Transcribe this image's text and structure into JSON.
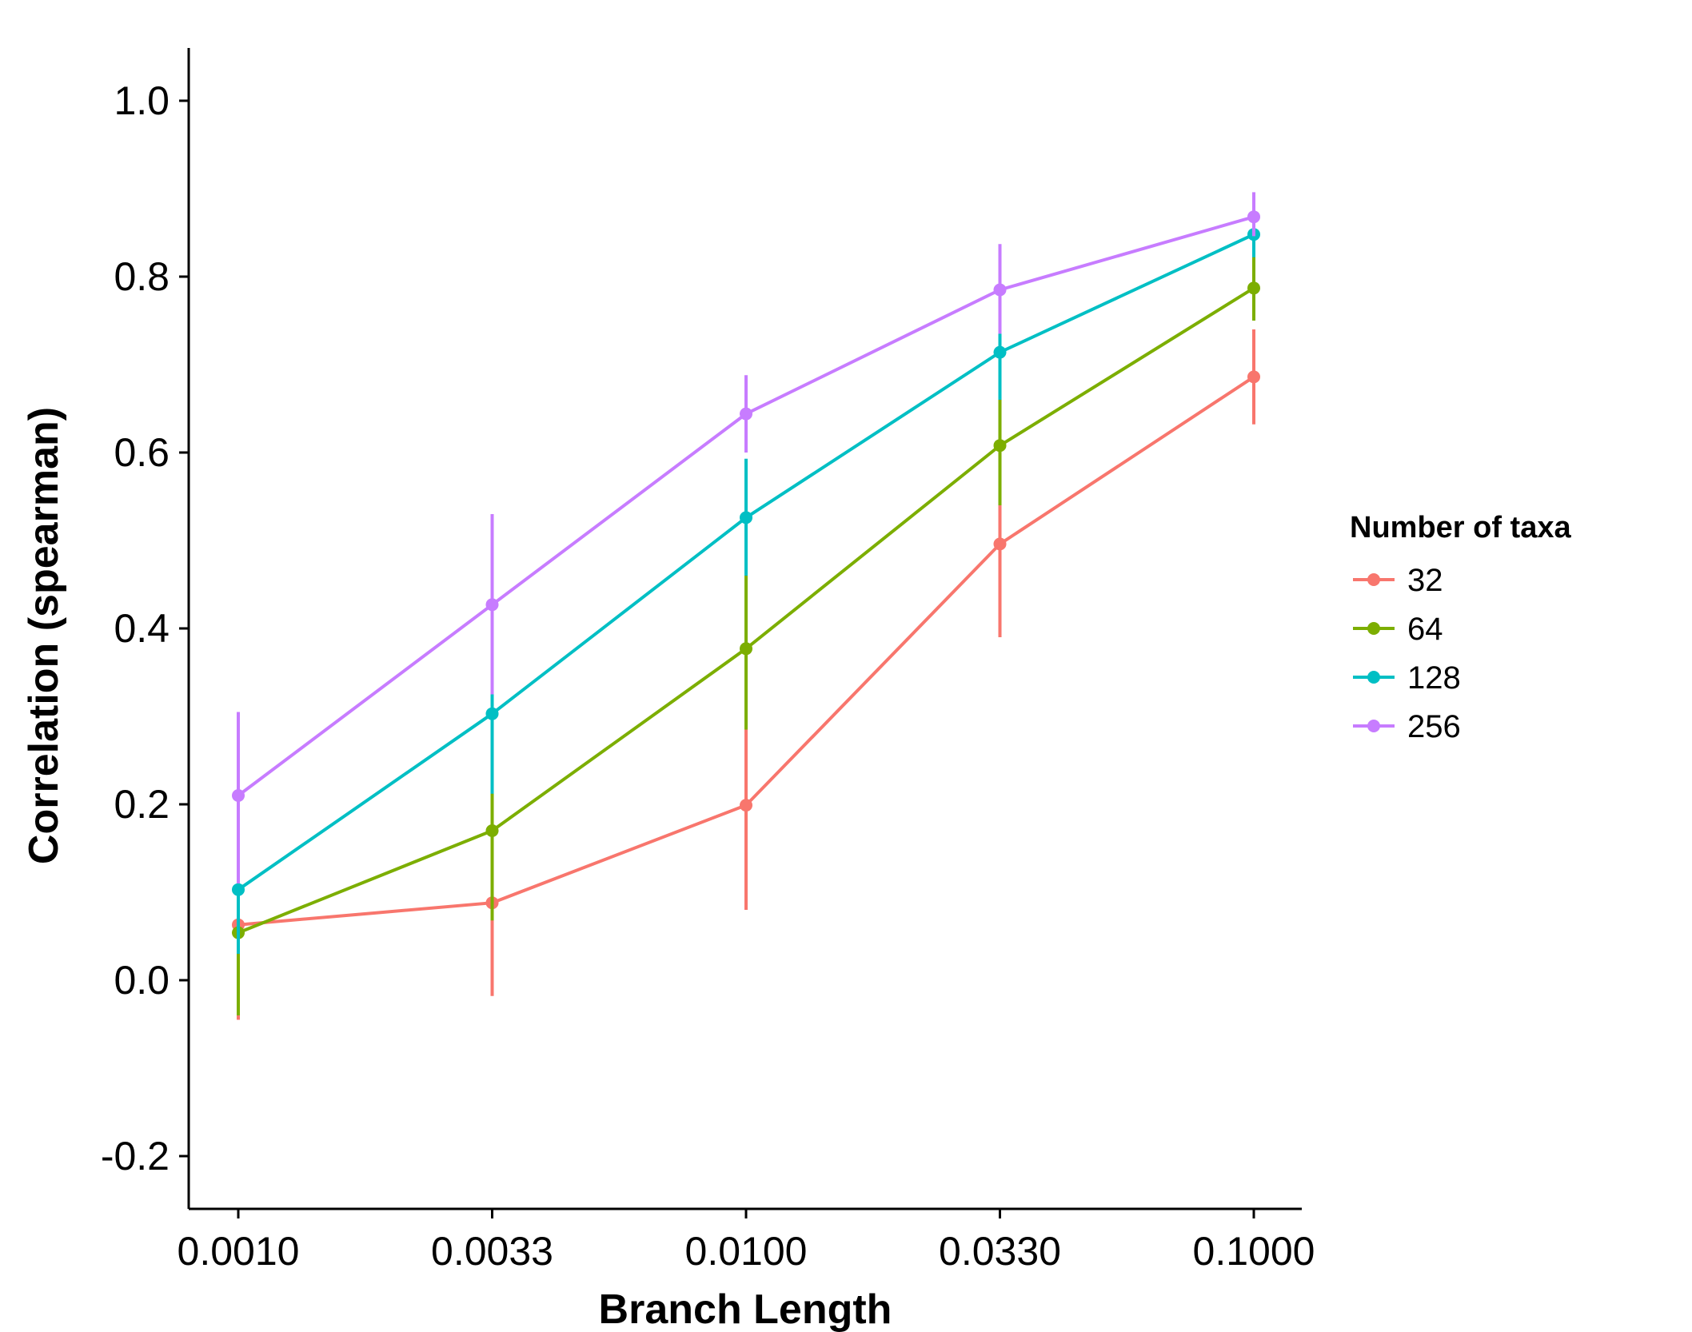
{
  "chart_data": {
    "type": "line",
    "x": [
      "0.0010",
      "0.0033",
      "0.0100",
      "0.0330",
      "0.1000"
    ],
    "xlabel": "Branch Length",
    "ylabel": "Correlation (spearman)",
    "ylim": [
      -0.26,
      1.06
    ],
    "yticks": [
      "-0.2",
      "0.0",
      "0.2",
      "0.4",
      "0.6",
      "0.8",
      "1.0"
    ],
    "ytick_values": [
      -0.2,
      0.0,
      0.2,
      0.4,
      0.6,
      0.8,
      1.0
    ],
    "grid": false,
    "legend": {
      "title": "Number of taxa",
      "position": "right"
    },
    "series": [
      {
        "name": "32",
        "color": "#F8766D",
        "values": [
          0.063,
          0.088,
          0.199,
          0.496,
          0.686
        ],
        "lower": [
          -0.045,
          -0.018,
          0.08,
          0.39,
          0.632
        ],
        "upper": [
          0.12,
          0.195,
          0.285,
          0.55,
          0.74
        ]
      },
      {
        "name": "64",
        "color": "#7CAE00",
        "values": [
          0.054,
          0.17,
          0.377,
          0.608,
          0.787
        ],
        "lower": [
          -0.04,
          0.068,
          0.285,
          0.54,
          0.75
        ],
        "upper": [
          0.15,
          0.28,
          0.465,
          0.66,
          0.825
        ]
      },
      {
        "name": "128",
        "color": "#00BFC4",
        "values": [
          0.103,
          0.303,
          0.526,
          0.714,
          0.848
        ],
        "lower": [
          0.03,
          0.212,
          0.46,
          0.66,
          0.822
        ],
        "upper": [
          0.185,
          0.325,
          0.593,
          0.765,
          0.872
        ]
      },
      {
        "name": "256",
        "color": "#C77CFF",
        "values": [
          0.21,
          0.427,
          0.644,
          0.785,
          0.868
        ],
        "lower": [
          0.11,
          0.325,
          0.6,
          0.735,
          0.846
        ],
        "upper": [
          0.305,
          0.53,
          0.688,
          0.837,
          0.896
        ]
      }
    ]
  }
}
